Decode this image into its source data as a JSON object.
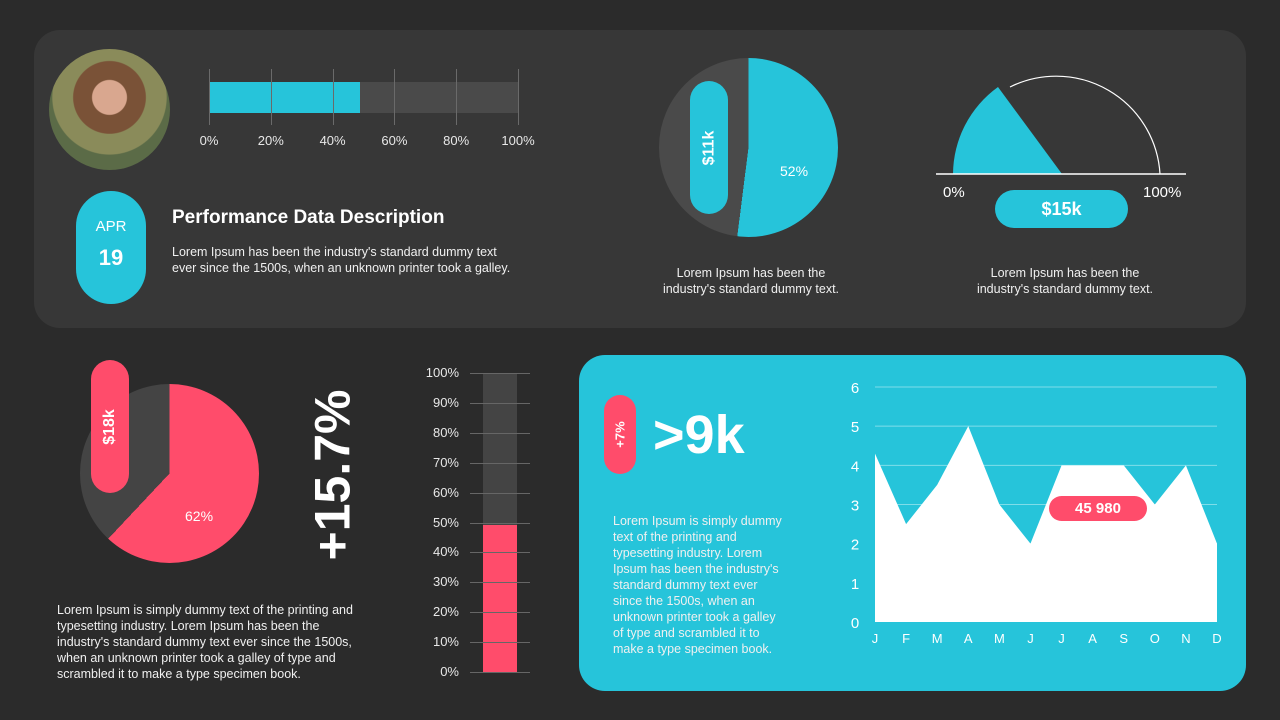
{
  "colors": {
    "background": "#2b2b2b",
    "panel": "#373737",
    "accent_teal": "#26c4da",
    "accent_pink": "#ff4c6b",
    "track": "#4a4a4a"
  },
  "profile": {
    "avatar": "avatar-photo",
    "progress": {
      "value_pct": 49,
      "ticks": [
        "0%",
        "20%",
        "40%",
        "60%",
        "80%",
        "100%"
      ]
    },
    "date": {
      "month": "APR",
      "day": "19"
    },
    "title": "Performance Data Description",
    "description_line1": "Lorem Ipsum has been the industry's standard dummy text",
    "description_line2": "ever since the 1500s, when an unknown printer took a galley."
  },
  "pie_teal": {
    "value_pct": 52,
    "label": "52%",
    "pill": "$11k",
    "caption_line1": "Lorem Ipsum has been the",
    "caption_line2": "industry's standard dummy text."
  },
  "gauge": {
    "min_label": "0%",
    "max_label": "100%",
    "value_pct": 35,
    "pill": "$15k",
    "caption_line1": "Lorem Ipsum has been the",
    "caption_line2": "industry's standard dummy text."
  },
  "pie_pink": {
    "value_pct": 62,
    "label": "62%",
    "pill": "$18k",
    "description": [
      "Lorem Ipsum is simply dummy text of the printing and",
      "typesetting industry. Lorem Ipsum has been the",
      "industry's standard dummy text ever since the 1500s,",
      "when an unknown printer took a galley of type and",
      "scrambled it to make a type specimen book."
    ]
  },
  "growth": {
    "value": "+15.7%"
  },
  "thermometer": {
    "value_pct": 49,
    "ticks": [
      "100%",
      "90%",
      "80%",
      "70%",
      "60%",
      "50%",
      "40%",
      "30%",
      "20%",
      "10%",
      "0%"
    ]
  },
  "teal_panel": {
    "badge": "+7%",
    "headline": ">9k",
    "description": [
      "Lorem Ipsum is simply dummy",
      "text of the printing and",
      "typesetting industry. Lorem",
      "Ipsum has been the industry's",
      "standard dummy text ever",
      "since the 1500s, when an",
      "unknown printer took a galley",
      "of type and scrambled it to",
      "make a type specimen book."
    ],
    "callout": "45 980"
  },
  "chart_data": [
    {
      "type": "bar",
      "title": "",
      "categories": [
        "Progress"
      ],
      "values": [
        49
      ],
      "xlim": [
        0,
        100
      ],
      "ticks": [
        "0%",
        "20%",
        "40%",
        "60%",
        "80%",
        "100%"
      ],
      "orientation": "horizontal"
    },
    {
      "type": "pie",
      "values": [
        52,
        48
      ],
      "labels": [
        "52%",
        ""
      ],
      "annotation": "$11k"
    },
    {
      "type": "pie",
      "subtype": "gauge",
      "values": [
        35
      ],
      "range_labels": [
        "0%",
        "100%"
      ],
      "annotation": "$15k"
    },
    {
      "type": "pie",
      "values": [
        62,
        38
      ],
      "labels": [
        "62%",
        ""
      ],
      "annotation": "$18k"
    },
    {
      "type": "bar",
      "categories": [
        "Value"
      ],
      "values": [
        49
      ],
      "ylim": [
        0,
        100
      ],
      "ticks": [
        "0%",
        "10%",
        "20%",
        "30%",
        "40%",
        "50%",
        "60%",
        "70%",
        "80%",
        "90%",
        "100%"
      ],
      "orientation": "vertical"
    },
    {
      "type": "area",
      "x": [
        "J",
        "F",
        "M",
        "A",
        "M",
        "J",
        "J",
        "A",
        "S",
        "O",
        "N",
        "D"
      ],
      "values": [
        4.3,
        2.5,
        3.5,
        5,
        3,
        2,
        4,
        4,
        4,
        3,
        4,
        2
      ],
      "ylim": [
        0,
        6
      ],
      "yticks": [
        "0",
        "1",
        "2",
        "3",
        "4",
        "5",
        "6"
      ],
      "grid": true,
      "annotation": "45 980"
    }
  ]
}
